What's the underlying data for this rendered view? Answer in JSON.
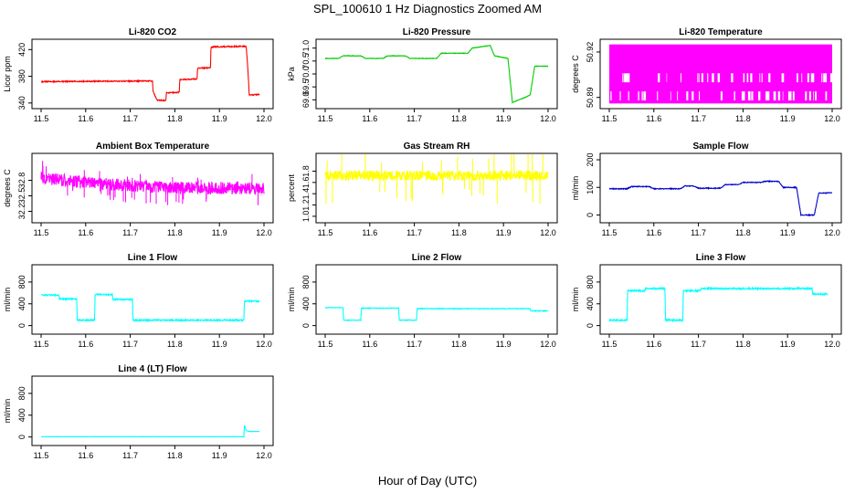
{
  "figure": {
    "title": "SPL_100610  1 Hz Diagnostics Zoomed AM",
    "xlabel": "Hour of Day (UTC)"
  },
  "chart_data": [
    {
      "id": "li820-co2",
      "type": "line",
      "title": "Li-820 CO2",
      "ylabel": "Licor ppm",
      "color": "#ff0000",
      "xlim": [
        11.5,
        12.0
      ],
      "ylim": [
        337,
        430
      ],
      "xticks": [
        "11.5",
        "11.6",
        "11.7",
        "11.8",
        "11.9",
        "12.0"
      ],
      "yticks": [
        "340",
        "380",
        "420"
      ],
      "series": [
        {
          "name": "Li-820 CO2",
          "x": [
            11.5,
            11.75,
            11.751,
            11.76,
            11.78,
            11.781,
            11.81,
            11.811,
            11.85,
            11.851,
            11.88,
            11.881,
            11.96,
            11.963,
            11.967,
            11.97,
            11.99
          ],
          "y": [
            372,
            373,
            358,
            344,
            344,
            355,
            356,
            375,
            376,
            392,
            393,
            424,
            425,
            400,
            352,
            352,
            353
          ]
        }
      ]
    },
    {
      "id": "li820-pressure",
      "type": "line",
      "title": "Li-820 Pressure",
      "ylabel": "kPa",
      "color": "#00cc00",
      "xlim": [
        11.5,
        12.0
      ],
      "ylim": [
        68.8,
        71.2
      ],
      "xticks": [
        "11.5",
        "11.6",
        "11.7",
        "11.8",
        "11.9",
        "12.0"
      ],
      "yticks": [
        "69.0",
        "69.5",
        "70.0",
        "70.5",
        "71.0"
      ],
      "series": [
        {
          "name": "Li-820 Pressure",
          "x": [
            11.5,
            11.53,
            11.54,
            11.58,
            11.59,
            11.63,
            11.64,
            11.68,
            11.69,
            11.75,
            11.76,
            11.82,
            11.83,
            11.87,
            11.88,
            11.91,
            11.92,
            11.95,
            11.96,
            11.97,
            12.0
          ],
          "y": [
            70.6,
            70.6,
            70.7,
            70.7,
            70.6,
            70.6,
            70.7,
            70.7,
            70.6,
            70.6,
            70.8,
            70.8,
            71.0,
            71.1,
            70.7,
            70.6,
            68.9,
            69.1,
            69.2,
            70.3,
            70.3
          ]
        }
      ]
    },
    {
      "id": "li820-temperature",
      "type": "line",
      "title": "Li-820 Temperature",
      "ylabel": "degrees C",
      "color": "#ff00ff",
      "xlim": [
        11.5,
        12.0
      ],
      "ylim": [
        50.885,
        50.926
      ],
      "xticks": [
        "11.5",
        "11.6",
        "11.7",
        "11.8",
        "11.9",
        "12.0"
      ],
      "yticks": [
        "50.89",
        "50.92"
      ],
      "series": [
        {
          "name": "Li-820 Temperature",
          "x": [
            11.5,
            12.0
          ],
          "y": [
            50.886,
            50.925
          ],
          "pattern": "dense alternating between two readings"
        }
      ]
    },
    {
      "id": "ambient-box-temperature",
      "type": "line",
      "title": "Ambient Box Temperature",
      "ylabel": "degrees C",
      "color": "#ff00ff",
      "xlim": [
        11.5,
        12.0
      ],
      "ylim": [
        32.05,
        33.25
      ],
      "xticks": [
        "11.5",
        "11.6",
        "11.7",
        "11.8",
        "11.9",
        "12.0"
      ],
      "yticks": [
        "32.2",
        "32.5",
        "32.8"
      ],
      "series": [
        {
          "name": "Ambient Box Temperature",
          "x": [
            11.5,
            11.6,
            11.7,
            11.8,
            11.9,
            12.0
          ],
          "y": [
            32.85,
            32.75,
            32.7,
            32.65,
            32.65,
            32.65
          ]
        }
      ]
    },
    {
      "id": "gas-stream-rh",
      "type": "line",
      "title": "Gas Stream RH",
      "ylabel": "percent",
      "color": "#ffff00",
      "xlim": [
        11.5,
        12.0
      ],
      "ylim": [
        0.95,
        2.05
      ],
      "xticks": [
        "11.5",
        "11.6",
        "11.7",
        "11.8",
        "11.9",
        "12.0"
      ],
      "yticks": [
        "1.0",
        "1.2",
        "1.4",
        "1.6",
        "1.8"
      ],
      "series": [
        {
          "name": "Gas Stream RH",
          "x": [
            11.5,
            11.6,
            11.7,
            11.8,
            11.9,
            12.0
          ],
          "y": [
            1.72,
            1.72,
            1.72,
            1.72,
            1.72,
            1.72
          ]
        }
      ]
    },
    {
      "id": "sample-flow",
      "type": "line",
      "title": "Sample Flow",
      "ylabel": "ml/min",
      "color": "#0000cc",
      "xlim": [
        11.5,
        12.0
      ],
      "ylim": [
        -15,
        210
      ],
      "xticks": [
        "11.5",
        "11.6",
        "11.7",
        "11.8",
        "11.9",
        "12.0"
      ],
      "yticks": [
        "0",
        "100",
        "200"
      ],
      "series": [
        {
          "name": "Sample Flow",
          "x": [
            11.5,
            11.54,
            11.55,
            11.59,
            11.6,
            11.66,
            11.67,
            11.69,
            11.7,
            11.75,
            11.76,
            11.79,
            11.8,
            11.84,
            11.85,
            11.88,
            11.89,
            11.92,
            11.93,
            11.96,
            11.97,
            12.0
          ],
          "y": [
            95,
            95,
            103,
            103,
            95,
            95,
            105,
            105,
            97,
            97,
            110,
            110,
            118,
            118,
            122,
            122,
            100,
            100,
            0,
            0,
            80,
            80
          ]
        }
      ]
    },
    {
      "id": "line1-flow",
      "type": "line",
      "title": "Line 1 Flow",
      "ylabel": "ml/min",
      "color": "#00ffff",
      "xlim": [
        11.5,
        12.0
      ],
      "ylim": [
        -90,
        1050
      ],
      "xticks": [
        "11.5",
        "11.6",
        "11.7",
        "11.8",
        "11.9",
        "12.0"
      ],
      "yticks": [
        "0",
        "400",
        "800"
      ],
      "series": [
        {
          "name": "Line 1 Flow",
          "x": [
            11.5,
            11.54,
            11.541,
            11.58,
            11.581,
            11.62,
            11.621,
            11.66,
            11.661,
            11.705,
            11.706,
            11.955,
            11.956,
            11.99
          ],
          "y": [
            560,
            560,
            490,
            490,
            100,
            100,
            570,
            570,
            480,
            480,
            100,
            100,
            450,
            450
          ]
        }
      ]
    },
    {
      "id": "line2-flow",
      "type": "line",
      "title": "Line 2 Flow",
      "ylabel": "ml/min",
      "color": "#00ffff",
      "xlim": [
        11.5,
        12.0
      ],
      "ylim": [
        -90,
        1050
      ],
      "xticks": [
        "11.5",
        "11.6",
        "11.7",
        "11.8",
        "11.9",
        "12.0"
      ],
      "yticks": [
        "0",
        "400",
        "800"
      ],
      "series": [
        {
          "name": "Line 2 Flow",
          "x": [
            11.5,
            11.54,
            11.541,
            11.58,
            11.581,
            11.665,
            11.666,
            11.705,
            11.706,
            11.96,
            11.961,
            12.0
          ],
          "y": [
            330,
            330,
            100,
            100,
            320,
            320,
            100,
            100,
            310,
            310,
            270,
            270
          ]
        }
      ]
    },
    {
      "id": "line3-flow",
      "type": "line",
      "title": "Line 3 Flow",
      "ylabel": "ml/min",
      "color": "#00ffff",
      "xlim": [
        11.5,
        12.0
      ],
      "ylim": [
        -90,
        1050
      ],
      "xticks": [
        "11.5",
        "11.6",
        "11.7",
        "11.8",
        "11.9",
        "12.0"
      ],
      "yticks": [
        "0",
        "400",
        "800"
      ],
      "series": [
        {
          "name": "Line 3 Flow",
          "x": [
            11.5,
            11.54,
            11.541,
            11.58,
            11.581,
            11.625,
            11.626,
            11.665,
            11.666,
            11.705,
            11.706,
            11.955,
            11.956,
            11.99
          ],
          "y": [
            100,
            100,
            640,
            640,
            680,
            680,
            100,
            100,
            640,
            640,
            680,
            680,
            580,
            580
          ]
        }
      ]
    },
    {
      "id": "line4-flow",
      "type": "line",
      "title": "Line 4 (LT) Flow",
      "ylabel": "ml/min",
      "color": "#00ffff",
      "xlim": [
        11.5,
        12.0
      ],
      "ylim": [
        -90,
        1050
      ],
      "xticks": [
        "11.5",
        "11.6",
        "11.7",
        "11.8",
        "11.9",
        "12.0"
      ],
      "yticks": [
        "0",
        "400",
        "800"
      ],
      "series": [
        {
          "name": "Line 4 (LT) Flow",
          "x": [
            11.5,
            11.955,
            11.956,
            11.96,
            11.965,
            11.99
          ],
          "y": [
            5,
            5,
            220,
            120,
            100,
            100
          ]
        }
      ]
    }
  ]
}
